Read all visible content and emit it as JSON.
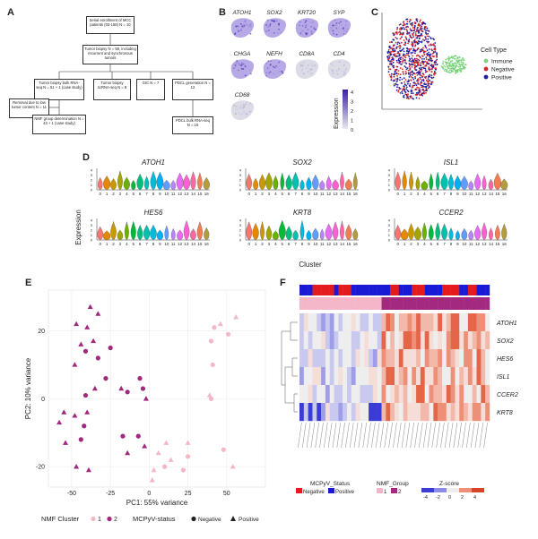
{
  "panels": {
    "A": "A",
    "B": "B",
    "C": "C",
    "D": "D",
    "E": "E",
    "F": "F"
  },
  "flowchart": {
    "boxes": [
      {
        "id": "enroll",
        "text": "Serial enrollment of MCC patients (03-158) N = 10"
      },
      {
        "id": "biopsy",
        "text": "Tumor biopsy N = 58, including recurrent and synchronous tumors"
      },
      {
        "id": "bulk",
        "text": "Tumor biopsy bulk RNA-seq N = 51 + 1 (case study)"
      },
      {
        "id": "sc",
        "text": "Tumor biopsy scRNA-seq N = 8"
      },
      {
        "id": "gic",
        "text": "GIC N = 7"
      },
      {
        "id": "pdcl",
        "text": "PDCL generation N = 12"
      },
      {
        "id": "removal",
        "text": "Removal due to low tumor content N = 11"
      },
      {
        "id": "nmf",
        "text": "NMF group determination N = 43 + 1 (case study)"
      },
      {
        "id": "pdclbulk",
        "text": "PDCL bulk RNA-seq N = 16"
      }
    ]
  },
  "featureplots": {
    "genes": [
      "ATOH1",
      "SOX2",
      "KRT20",
      "SYP",
      "CHGA",
      "NEFH",
      "CD8A",
      "CD4",
      "CD68"
    ],
    "legend_title": "Expression",
    "legend_ticks": [
      "4",
      "3",
      "2",
      "1",
      "0"
    ]
  },
  "umap": {
    "legend_title": "Cell Type",
    "items": [
      {
        "label": "Immune",
        "color": "#7fd37f"
      },
      {
        "label": "Negative",
        "color": "#d62728"
      },
      {
        "label": "Positive",
        "color": "#1f1f9e"
      }
    ]
  },
  "violin": {
    "ylabel": "Expression",
    "xlabel": "Cluster",
    "clusters": [
      "0",
      "1",
      "2",
      "3",
      "4",
      "5",
      "6",
      "7",
      "8",
      "9",
      "10",
      "11",
      "12",
      "13",
      "14",
      "15",
      "16"
    ],
    "genes": [
      "ATOH1",
      "SOX2",
      "ISL1",
      "HES6",
      "KRT8",
      "CCER2"
    ],
    "yticks": [
      "0",
      "1",
      "2",
      "3",
      "4"
    ],
    "colors": [
      "#f8766d",
      "#e58700",
      "#c99800",
      "#a3a500",
      "#6bb100",
      "#00ba38",
      "#00bf7d",
      "#00c0af",
      "#00bcd8",
      "#00b0f6",
      "#619cff",
      "#b983ff",
      "#e76bf3",
      "#fd61d1",
      "#ff67a4",
      "#f27d52",
      "#b49b3f"
    ]
  },
  "chart_data": {
    "type": "scatter",
    "title": "",
    "xlabel": "PC1: 55% variance",
    "ylabel": "PC2: 10% variance",
    "xlim": [
      -65,
      75
    ],
    "ylim": [
      -26,
      32
    ],
    "xticks": [
      -50,
      -25,
      0,
      25,
      50
    ],
    "yticks": [
      -20,
      0,
      20
    ],
    "legend": {
      "cluster_title": "NMF Cluster",
      "cluster_items": [
        {
          "label": "1",
          "color": "#f2b8c6"
        },
        {
          "label": "2",
          "color": "#a0287d"
        }
      ],
      "status_title": "MCPyV-status",
      "status_items": [
        {
          "label": "Negative",
          "shape": "circle"
        },
        {
          "label": "Positive",
          "shape": "triangle"
        }
      ]
    },
    "points": [
      {
        "x": -38,
        "y": 27,
        "cluster": 2,
        "status": "Positive"
      },
      {
        "x": -33,
        "y": 25,
        "cluster": 2,
        "status": "Positive"
      },
      {
        "x": -47,
        "y": 22,
        "cluster": 2,
        "status": "Positive"
      },
      {
        "x": -40,
        "y": 21,
        "cluster": 2,
        "status": "Positive"
      },
      {
        "x": -36,
        "y": 17,
        "cluster": 2,
        "status": "Positive"
      },
      {
        "x": -44,
        "y": 16,
        "cluster": 2,
        "status": "Positive"
      },
      {
        "x": -41,
        "y": 14,
        "cluster": 2,
        "status": "Negative"
      },
      {
        "x": -33,
        "y": 12,
        "cluster": 2,
        "status": "Negative"
      },
      {
        "x": -25,
        "y": 15,
        "cluster": 2,
        "status": "Negative"
      },
      {
        "x": -48,
        "y": 10,
        "cluster": 2,
        "status": "Positive"
      },
      {
        "x": -28,
        "y": 6,
        "cluster": 2,
        "status": "Negative"
      },
      {
        "x": -35,
        "y": 3,
        "cluster": 2,
        "status": "Positive"
      },
      {
        "x": -41,
        "y": 1,
        "cluster": 2,
        "status": "Negative"
      },
      {
        "x": -18,
        "y": 3,
        "cluster": 2,
        "status": "Positive"
      },
      {
        "x": -14,
        "y": 2,
        "cluster": 2,
        "status": "Negative"
      },
      {
        "x": -6,
        "y": 6,
        "cluster": 2,
        "status": "Negative"
      },
      {
        "x": -4,
        "y": 3,
        "cluster": 2,
        "status": "Negative"
      },
      {
        "x": -2,
        "y": 0,
        "cluster": 2,
        "status": "Positive"
      },
      {
        "x": -55,
        "y": -4,
        "cluster": 2,
        "status": "Positive"
      },
      {
        "x": -48,
        "y": -5,
        "cluster": 2,
        "status": "Positive"
      },
      {
        "x": -40,
        "y": -4,
        "cluster": 2,
        "status": "Positive"
      },
      {
        "x": -58,
        "y": -7,
        "cluster": 2,
        "status": "Positive"
      },
      {
        "x": -42,
        "y": -8,
        "cluster": 2,
        "status": "Negative"
      },
      {
        "x": -44,
        "y": -12,
        "cluster": 2,
        "status": "Negative"
      },
      {
        "x": -54,
        "y": -13,
        "cluster": 2,
        "status": "Positive"
      },
      {
        "x": -17,
        "y": -11,
        "cluster": 2,
        "status": "Negative"
      },
      {
        "x": -7,
        "y": -11,
        "cluster": 2,
        "status": "Negative"
      },
      {
        "x": -3,
        "y": -14,
        "cluster": 2,
        "status": "Positive"
      },
      {
        "x": -14,
        "y": -16,
        "cluster": 2,
        "status": "Positive"
      },
      {
        "x": -47,
        "y": -20,
        "cluster": 2,
        "status": "Positive"
      },
      {
        "x": -39,
        "y": -21,
        "cluster": 2,
        "status": "Positive"
      },
      {
        "x": 46,
        "y": 22,
        "cluster": 1,
        "status": "Positive"
      },
      {
        "x": 56,
        "y": 24,
        "cluster": 1,
        "status": "Positive"
      },
      {
        "x": 42,
        "y": 21,
        "cluster": 1,
        "status": "Negative"
      },
      {
        "x": 51,
        "y": 19,
        "cluster": 1,
        "status": "Negative"
      },
      {
        "x": 40,
        "y": 17,
        "cluster": 1,
        "status": "Negative"
      },
      {
        "x": 41,
        "y": 10,
        "cluster": 1,
        "status": "Negative"
      },
      {
        "x": 39,
        "y": 1,
        "cluster": 1,
        "status": "Positive"
      },
      {
        "x": 40,
        "y": 0,
        "cluster": 1,
        "status": "Negative"
      },
      {
        "x": 11,
        "y": -13,
        "cluster": 1,
        "status": "Positive"
      },
      {
        "x": 25,
        "y": -13,
        "cluster": 1,
        "status": "Positive"
      },
      {
        "x": 6,
        "y": -16,
        "cluster": 1,
        "status": "Positive"
      },
      {
        "x": 14,
        "y": -18,
        "cluster": 1,
        "status": "Positive"
      },
      {
        "x": 25,
        "y": -17,
        "cluster": 1,
        "status": "Negative"
      },
      {
        "x": 3,
        "y": -21,
        "cluster": 1,
        "status": "Positive"
      },
      {
        "x": 10,
        "y": -20,
        "cluster": 1,
        "status": "Negative"
      },
      {
        "x": 22,
        "y": -21,
        "cluster": 1,
        "status": "Negative"
      },
      {
        "x": 54,
        "y": -20,
        "cluster": 1,
        "status": "Positive"
      },
      {
        "x": 48,
        "y": -15,
        "cluster": 1,
        "status": "Negative"
      },
      {
        "x": 2,
        "y": -24,
        "cluster": 1,
        "status": "Positive"
      }
    ]
  },
  "heatmap": {
    "genes": [
      "ATOH1",
      "SOX2",
      "HES6",
      "ISL1",
      "CCER2",
      "KRT8"
    ],
    "legend": {
      "mcpyv_title": "MCPyV_Status",
      "mcpyv_items": [
        {
          "label": "Negative",
          "color": "#e41a1c"
        },
        {
          "label": "Positive",
          "color": "#1a1ad6"
        }
      ],
      "nmf_title": "NMF_Group",
      "nmf_items": [
        {
          "label": "1",
          "color": "#f4b6c8"
        },
        {
          "label": "2",
          "color": "#a3287f"
        }
      ],
      "z_title": "Z-score",
      "z_ticks": [
        "-4",
        "-2",
        "0",
        "2",
        "4"
      ]
    }
  }
}
